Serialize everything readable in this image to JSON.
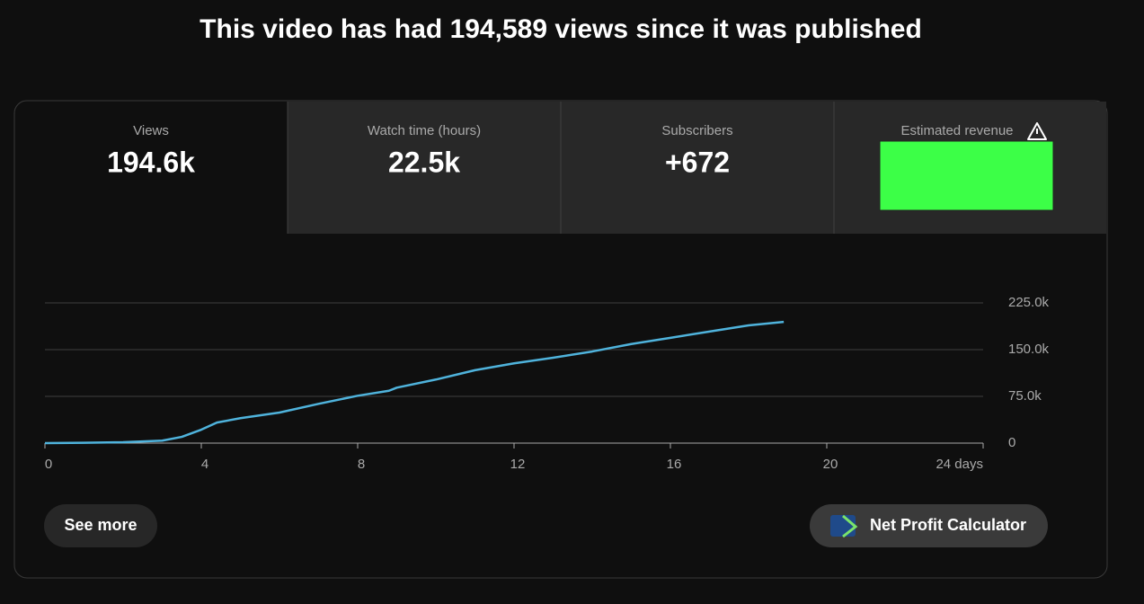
{
  "header": {
    "title": "This video has had 194,589 views since it was published"
  },
  "tabs": [
    {
      "label": "Views",
      "value": "194.6k"
    },
    {
      "label": "Watch time (hours)",
      "value": "22.5k"
    },
    {
      "label": "Subscribers",
      "value": "+672"
    },
    {
      "label": "Estimated revenue"
    }
  ],
  "chart_data": {
    "type": "line",
    "x": [
      0,
      1,
      2,
      3,
      3.5,
      4,
      4.4,
      5,
      6,
      7,
      8,
      8.8,
      9,
      10,
      11,
      12,
      13,
      14,
      15,
      16,
      17,
      18,
      18.9
    ],
    "values": [
      0,
      500,
      1500,
      4000,
      10000,
      21600,
      33000,
      40000,
      49000,
      63000,
      76000,
      84000,
      89000,
      102000,
      117000,
      128000,
      137000,
      147000,
      159000,
      169000,
      179000,
      189000,
      194589
    ],
    "color": "#4fb3dc",
    "xlim": [
      0,
      24
    ],
    "xticks": [
      0,
      4,
      8,
      12,
      16,
      20,
      {
        "value": 24,
        "label": "24 days"
      }
    ],
    "ylim": [
      0,
      225000
    ],
    "yticks": [
      0,
      {
        "value": 75000,
        "label": "75.0k"
      },
      {
        "value": 150000,
        "label": "150.0k"
      },
      {
        "value": 225000,
        "label": "225.0k"
      }
    ],
    "grid": true
  },
  "buttons": [
    "See more",
    "Net Profit Calculator"
  ]
}
